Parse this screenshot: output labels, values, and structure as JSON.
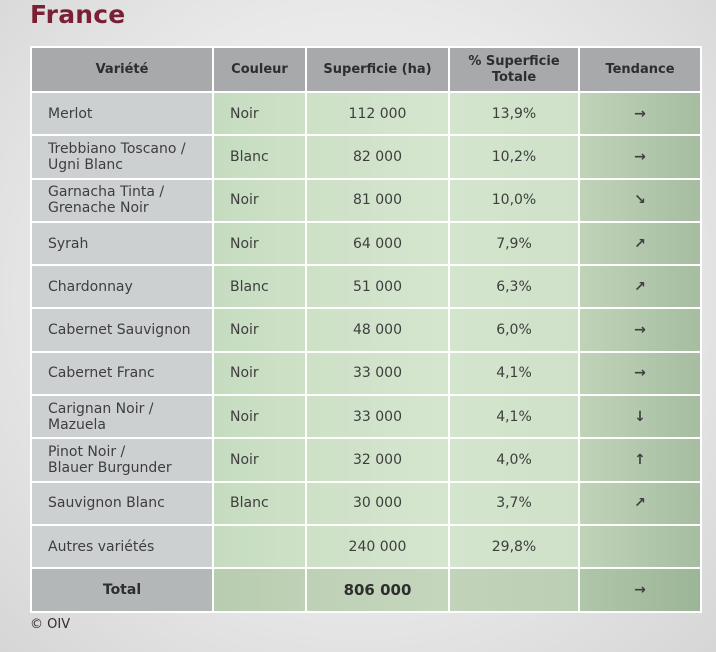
{
  "title": "France",
  "headers": [
    "Variété",
    "Couleur",
    "Superficie (ha)",
    "% Superficie\nTotale",
    "Tendance"
  ],
  "rows": [
    {
      "variety": "Merlot",
      "color": "Noir",
      "area": "112 000",
      "pct": "13,9%",
      "trend": "→",
      "trend_icon": "arrow-right-icon"
    },
    {
      "variety": "Trebbiano Toscano /\nUgni Blanc",
      "color": "Blanc",
      "area": "82 000",
      "pct": "10,2%",
      "trend": "→",
      "trend_icon": "arrow-right-icon"
    },
    {
      "variety": "Garnacha Tinta /\nGrenache Noir",
      "color": "Noir",
      "area": "81 000",
      "pct": "10,0%",
      "trend": "↘",
      "trend_icon": "arrow-down-right-icon"
    },
    {
      "variety": "Syrah",
      "color": "Noir",
      "area": "64 000",
      "pct": "7,9%",
      "trend": "↗",
      "trend_icon": "arrow-up-right-icon"
    },
    {
      "variety": "Chardonnay",
      "color": "Blanc",
      "area": "51 000",
      "pct": "6,3%",
      "trend": "↗",
      "trend_icon": "arrow-up-right-icon"
    },
    {
      "variety": "Cabernet Sauvignon",
      "color": "Noir",
      "area": "48 000",
      "pct": "6,0%",
      "trend": "→",
      "trend_icon": "arrow-right-icon"
    },
    {
      "variety": "Cabernet Franc",
      "color": "Noir",
      "area": "33 000",
      "pct": "4,1%",
      "trend": "→",
      "trend_icon": "arrow-right-icon"
    },
    {
      "variety": "Carignan Noir /\nMazuela",
      "color": "Noir",
      "area": "33 000",
      "pct": "4,1%",
      "trend": "↓",
      "trend_icon": "arrow-down-icon"
    },
    {
      "variety": "Pinot Noir /\nBlauer Burgunder",
      "color": "Noir",
      "area": "32 000",
      "pct": "4,0%",
      "trend": "↑",
      "trend_icon": "arrow-up-icon"
    },
    {
      "variety": "Sauvignon Blanc",
      "color": "Blanc",
      "area": "30 000",
      "pct": "3,7%",
      "trend": "↗",
      "trend_icon": "arrow-up-right-icon"
    },
    {
      "variety": "Autres variétés",
      "color": "",
      "area": "240 000",
      "pct": "29,8%",
      "trend": "",
      "trend_icon": ""
    }
  ],
  "total": {
    "label": "Total",
    "color": "",
    "area": "806 000",
    "pct": "",
    "trend": "→",
    "trend_icon": "arrow-right-icon"
  },
  "footer": "© OIV",
  "colors": {
    "title": "#7a1f35",
    "header_bg": "#a7a9aa",
    "variety_bg": "#cdd0d1",
    "green_bg": "#cde1c6"
  }
}
